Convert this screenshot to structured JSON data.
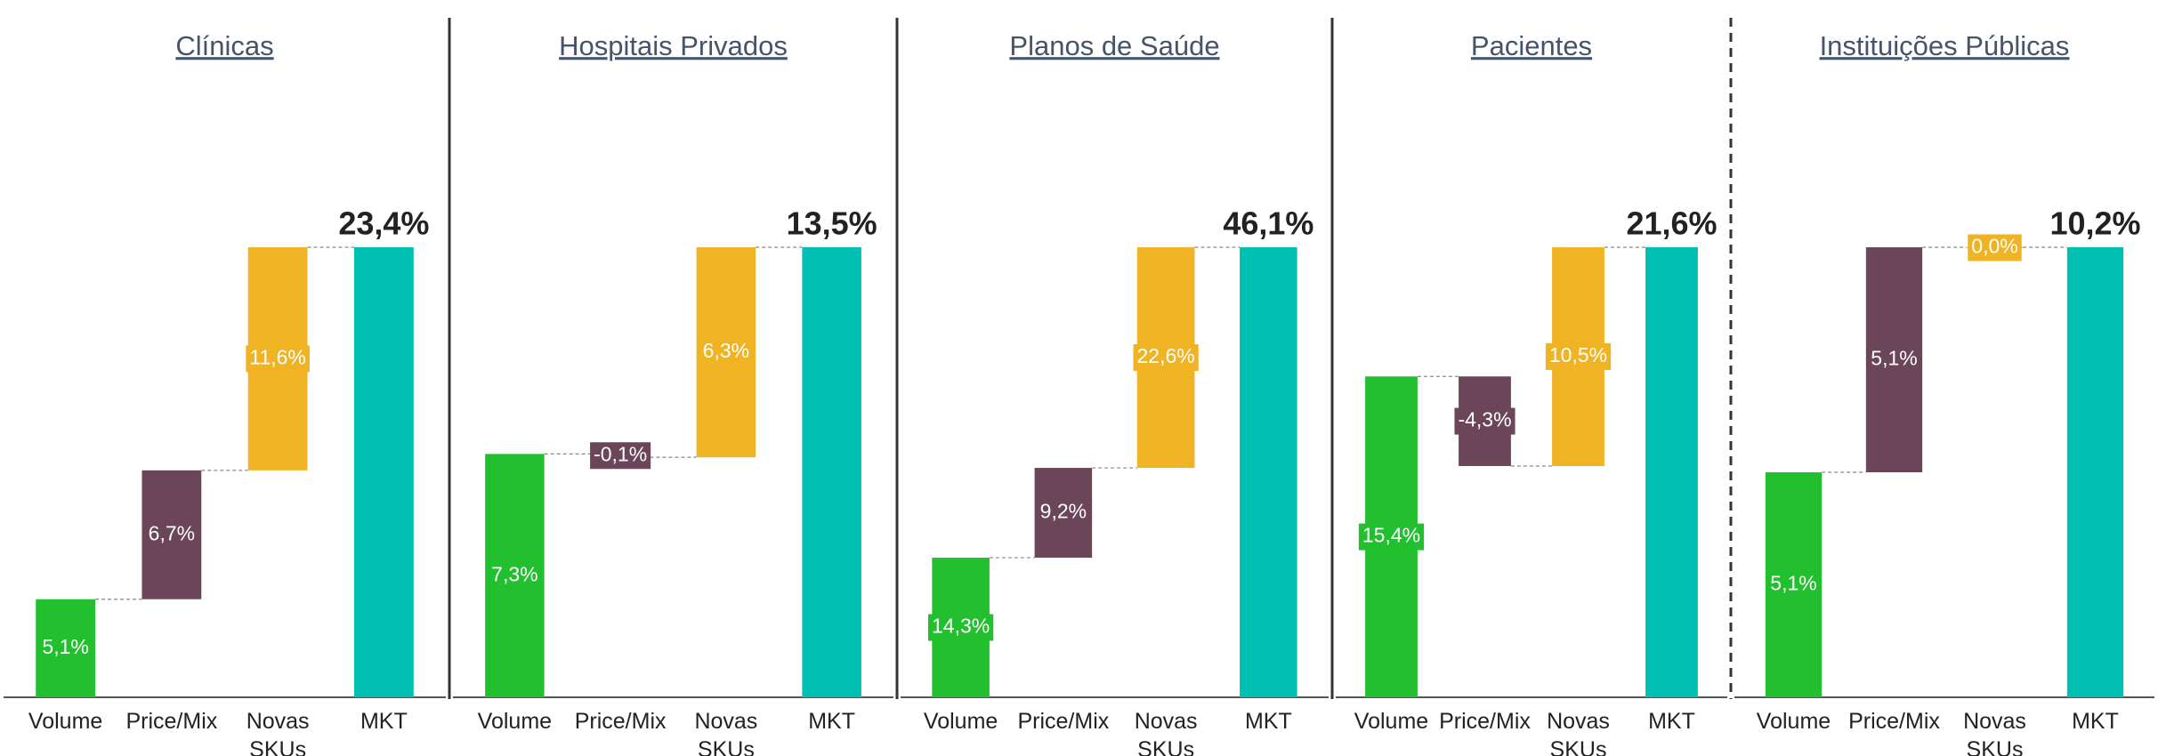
{
  "chart_data": [
    {
      "type": "waterfall",
      "title": "Clínicas",
      "categories": [
        "Volume",
        "Price/Mix",
        "Novas SKUs",
        "MKT"
      ],
      "values": [
        5.1,
        6.7,
        11.6,
        23.4
      ],
      "value_labels": [
        "5,1%",
        "6,7%",
        "11,6%",
        "23,4%"
      ],
      "colors": [
        "#22c02e",
        "#6b4558",
        "#f0b323",
        "#00bfb3"
      ]
    },
    {
      "type": "waterfall",
      "title": "Hospitais Privados",
      "categories": [
        "Volume",
        "Price/Mix",
        "Novas SKUs",
        "MKT"
      ],
      "values": [
        7.3,
        -0.1,
        6.3,
        13.5
      ],
      "value_labels": [
        "7,3%",
        "-0,1%",
        "6,3%",
        "13,5%"
      ],
      "colors": [
        "#22c02e",
        "#6b4558",
        "#f0b323",
        "#00bfb3"
      ]
    },
    {
      "type": "waterfall",
      "title": "Planos de Saúde",
      "categories": [
        "Volume",
        "Price/Mix",
        "Novas SKUs",
        "MKT"
      ],
      "values": [
        14.3,
        9.2,
        22.6,
        46.1
      ],
      "value_labels": [
        "14,3%",
        "9,2%",
        "22,6%",
        "46,1%"
      ],
      "colors": [
        "#22c02e",
        "#6b4558",
        "#f0b323",
        "#00bfb3"
      ]
    },
    {
      "type": "waterfall",
      "title": "Pacientes",
      "categories": [
        "Volume",
        "Price/Mix",
        "Novas SKUs",
        "MKT"
      ],
      "values": [
        15.4,
        -4.3,
        10.5,
        21.6
      ],
      "value_labels": [
        "15,4%",
        "-4,3%",
        "10,5%",
        "21,6%"
      ],
      "colors": [
        "#22c02e",
        "#6b4558",
        "#f0b323",
        "#00bfb3"
      ]
    },
    {
      "type": "waterfall",
      "title": "Instituições Públicas",
      "categories": [
        "Volume",
        "Price/Mix",
        "Novas SKUs",
        "MKT"
      ],
      "values": [
        5.1,
        5.1,
        0.0,
        10.2
      ],
      "value_labels": [
        "5,1%",
        "5,1%",
        "0,0%",
        "10,2%"
      ],
      "colors": [
        "#22c02e",
        "#6b4558",
        "#f0b323",
        "#00bfb3"
      ]
    }
  ]
}
